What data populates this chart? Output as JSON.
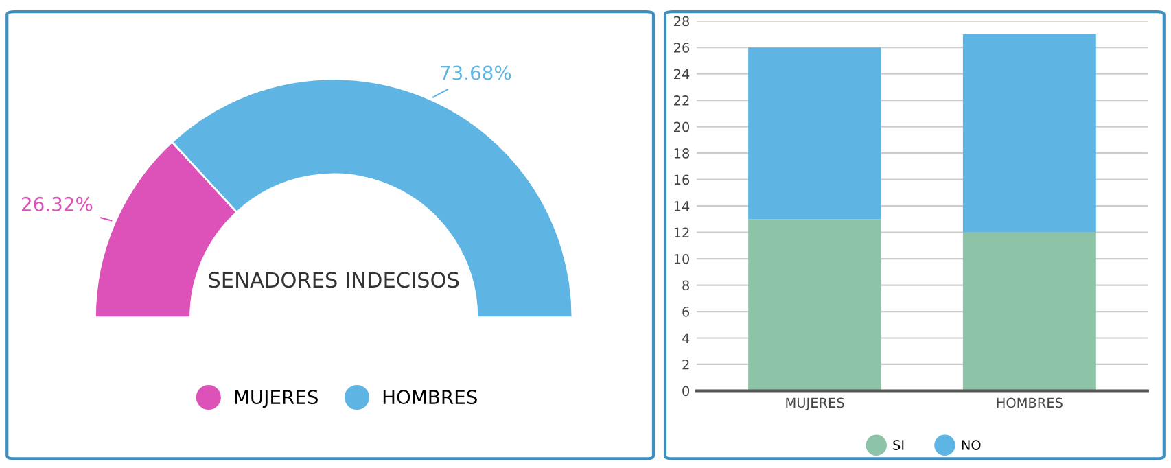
{
  "chart_data": [
    {
      "type": "donut",
      "title": "SENADORES INDECISOS",
      "categories": [
        "MUJERES",
        "HOMBRES"
      ],
      "values": [
        26.32,
        73.68
      ],
      "colors": [
        "#dd52b9",
        "#5eb5e3"
      ],
      "value_labels": [
        "26.32%",
        "73.68%"
      ],
      "legend": "bottom"
    },
    {
      "type": "bar",
      "stacked": true,
      "categories": [
        "MUJERES",
        "HOMBRES"
      ],
      "series": [
        {
          "name": "SI",
          "color": "#8dc3a7",
          "values": [
            13,
            12
          ]
        },
        {
          "name": "NO",
          "color": "#5eb5e3",
          "values": [
            13,
            15
          ]
        }
      ],
      "ylim": [
        0,
        28
      ],
      "yticks": [
        0,
        2,
        4,
        6,
        8,
        10,
        12,
        14,
        16,
        18,
        20,
        22,
        24,
        26,
        28
      ],
      "grid": "y",
      "legend": "bottom"
    }
  ]
}
